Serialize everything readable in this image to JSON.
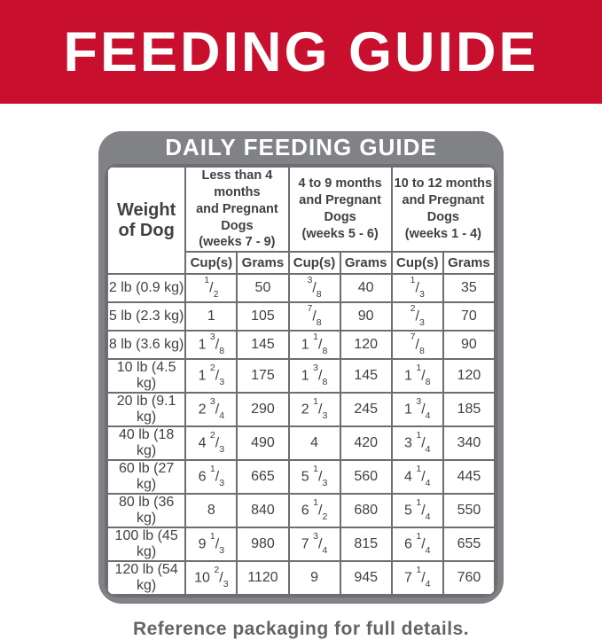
{
  "banner": {
    "title": "FEEDING GUIDE"
  },
  "table": {
    "title": "DAILY FEEDING GUIDE",
    "weight_header": {
      "line1": "Weight",
      "line2": "of Dog"
    },
    "groups": [
      {
        "line1": "Less than 4 months",
        "line2": "and Pregnant Dogs",
        "line3": "(weeks 7 - 9)"
      },
      {
        "line1": "4 to 9 months",
        "line2": "and Pregnant Dogs",
        "line3": "(weeks 5 - 6)"
      },
      {
        "line1": "10 to 12 months",
        "line2": "and Pregnant Dogs",
        "line3": "(weeks 1 - 4)"
      }
    ],
    "sub_headers": [
      "Cup(s)",
      "Grams"
    ],
    "rows": [
      {
        "weight": "2 lb (0.9 kg)",
        "cells": [
          "1/2",
          "50",
          "3/8",
          "40",
          "1/3",
          "35"
        ]
      },
      {
        "weight": "5 lb (2.3 kg)",
        "cells": [
          "1",
          "105",
          "7/8",
          "90",
          "2/3",
          "70"
        ]
      },
      {
        "weight": "8 lb (3.6 kg)",
        "cells": [
          "1 3/8",
          "145",
          "1 1/8",
          "120",
          "7/8",
          "90"
        ]
      },
      {
        "weight": "10 lb (4.5 kg)",
        "cells": [
          "1 2/3",
          "175",
          "1 3/8",
          "145",
          "1 1/8",
          "120"
        ]
      },
      {
        "weight": "20 lb (9.1 kg)",
        "cells": [
          "2 3/4",
          "290",
          "2 1/3",
          "245",
          "1 3/4",
          "185"
        ]
      },
      {
        "weight": "40 lb (18 kg)",
        "cells": [
          "4 2/3",
          "490",
          "4",
          "420",
          "3 1/4",
          "340"
        ]
      },
      {
        "weight": "60 lb (27 kg)",
        "cells": [
          "6 1/3",
          "665",
          "5 1/3",
          "560",
          "4 1/4",
          "445"
        ]
      },
      {
        "weight": "80 lb (36 kg)",
        "cells": [
          "8",
          "840",
          "6 1/2",
          "680",
          "5 1/4",
          "550"
        ]
      },
      {
        "weight": "100 lb (45 kg)",
        "cells": [
          "9 1/3",
          "980",
          "7 3/4",
          "815",
          "6 1/4",
          "655"
        ]
      },
      {
        "weight": "120 lb (54 kg)",
        "cells": [
          "10 2/3",
          "1120",
          "9",
          "945",
          "7 1/4",
          "760"
        ]
      }
    ]
  },
  "footer": {
    "note": "Reference packaging for full details."
  },
  "colors": {
    "banner_red": "#C8102E",
    "card_gray": "#808285",
    "line_gray": "#6D6E71",
    "text_dark": "#414042",
    "footer_gray": "#646467",
    "white": "#FFFFFF"
  }
}
